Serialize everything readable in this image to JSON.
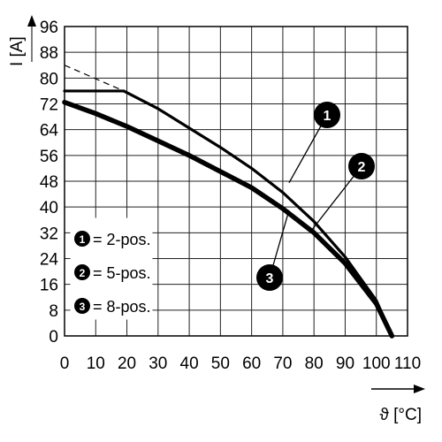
{
  "chart_data": {
    "type": "line",
    "xlabel": "ϑ [°C]",
    "ylabel": "I [A]",
    "xlim": [
      0,
      110
    ],
    "ylim": [
      0,
      96
    ],
    "xticks": [
      0,
      10,
      20,
      30,
      40,
      50,
      60,
      70,
      80,
      90,
      100,
      110
    ],
    "yticks": [
      0,
      8,
      16,
      24,
      32,
      40,
      48,
      56,
      64,
      72,
      80,
      88,
      96
    ],
    "grid": true,
    "legend_position": "bottom-left",
    "legend": [
      {
        "marker": "1",
        "label": "= 2-pos."
      },
      {
        "marker": "2",
        "label": "= 5-pos."
      },
      {
        "marker": "3",
        "label": "= 8-pos."
      }
    ],
    "reference_line": {
      "style": "dashed",
      "x": [
        0,
        19
      ],
      "y": [
        84,
        76
      ]
    },
    "series": [
      {
        "marker": "1",
        "x": [
          0,
          19,
          30,
          40,
          50,
          60,
          70,
          80,
          90,
          100,
          105
        ],
        "y": [
          76,
          76,
          70.5,
          64.5,
          58.5,
          52,
          44.5,
          35.5,
          24.5,
          11,
          0
        ]
      },
      {
        "marker": "2",
        "x": [
          0,
          19,
          30,
          40,
          50,
          60,
          70,
          80,
          90,
          100,
          105
        ],
        "y": [
          76,
          76,
          70.5,
          64.5,
          58.5,
          52,
          44.5,
          35.5,
          24.5,
          11,
          0
        ]
      },
      {
        "marker": "3",
        "x": [
          0,
          10,
          20,
          30,
          40,
          50,
          60,
          70,
          80,
          90,
          100,
          105
        ],
        "y": [
          72.5,
          69,
          65,
          60.5,
          56,
          51,
          46,
          39.5,
          32,
          22.5,
          10,
          0
        ]
      }
    ],
    "callouts": [
      {
        "marker": "1",
        "point": [
          72,
          47.5
        ]
      },
      {
        "marker": "2",
        "point": [
          79,
          32.5
        ]
      },
      {
        "marker": "3",
        "point": [
          72,
          39
        ]
      }
    ]
  }
}
